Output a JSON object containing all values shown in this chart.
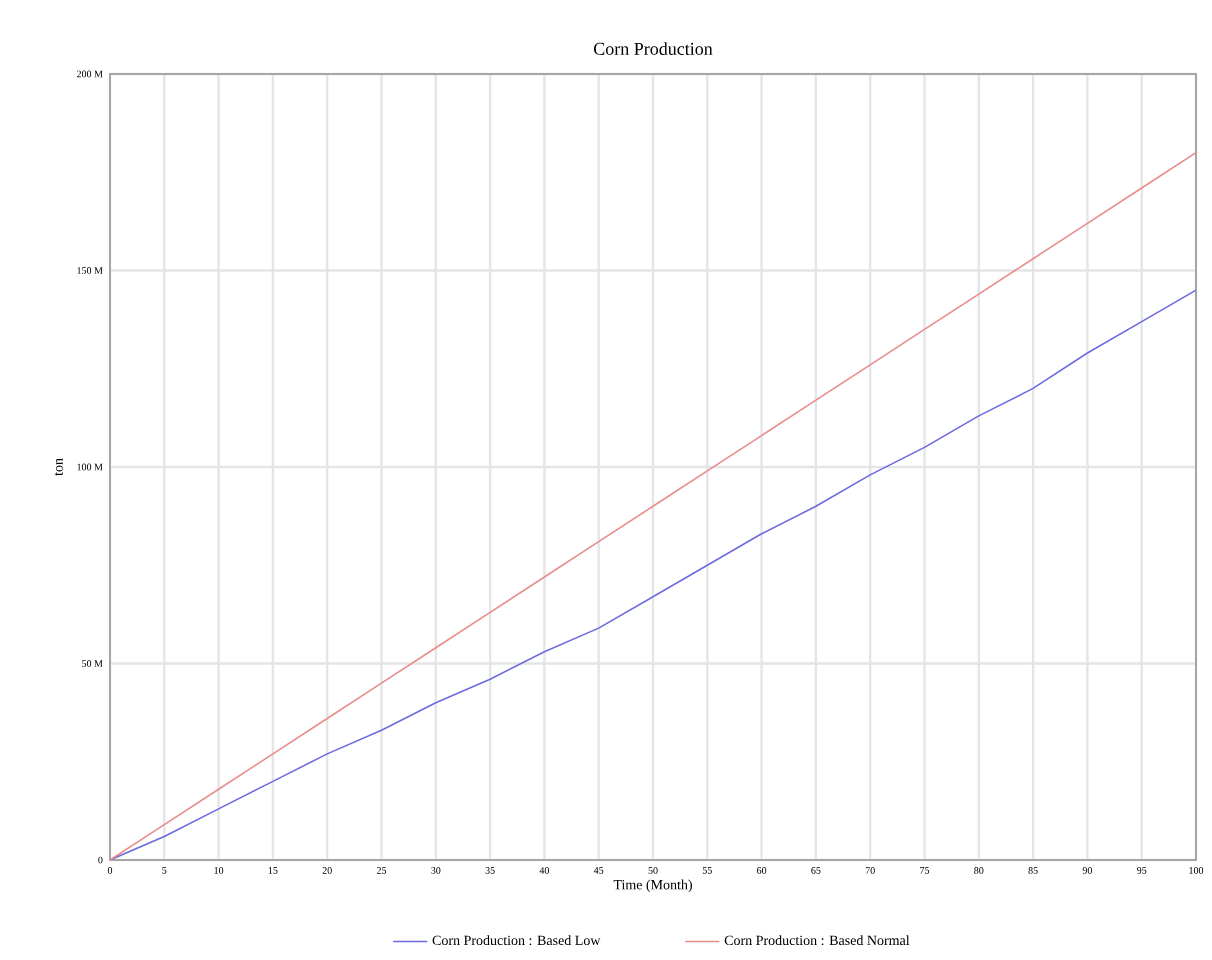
{
  "chart_data": {
    "type": "line",
    "title": "Corn Production",
    "xlabel": "Time (Month)",
    "ylabel": "ton",
    "x": [
      0,
      5,
      10,
      15,
      20,
      25,
      30,
      35,
      40,
      45,
      50,
      55,
      60,
      65,
      70,
      75,
      80,
      85,
      90,
      95,
      100
    ],
    "series": [
      {
        "name": "Corn Production : Based Low",
        "color": "#6b6be0",
        "values": [
          0,
          6,
          13,
          20,
          27,
          33,
          40,
          46,
          53,
          59,
          67,
          75,
          83,
          90,
          98,
          105,
          113,
          120,
          129,
          137,
          145
        ]
      },
      {
        "name": "Corn Production : Based Normal",
        "color": "#e88c8c",
        "values": [
          0,
          9,
          18,
          27,
          36,
          45,
          54,
          63,
          72,
          81,
          90,
          99,
          108,
          117,
          126,
          135,
          144,
          153,
          162,
          171,
          180
        ]
      }
    ],
    "xlim": [
      0,
      100
    ],
    "xticks": [
      0,
      5,
      10,
      15,
      20,
      25,
      30,
      35,
      40,
      45,
      50,
      55,
      60,
      65,
      70,
      75,
      80,
      85,
      90,
      95,
      100
    ],
    "ylim": [
      0,
      200
    ],
    "yticks": [
      0,
      {
        "value": 50,
        "label": "50 M"
      },
      {
        "value": 100,
        "label": "100 M"
      },
      {
        "value": 150,
        "label": "150 M"
      },
      {
        "value": 200,
        "label": "200 M"
      }
    ],
    "grid": true,
    "legend": "bottom",
    "marker": "none",
    "line_style": "solid"
  }
}
